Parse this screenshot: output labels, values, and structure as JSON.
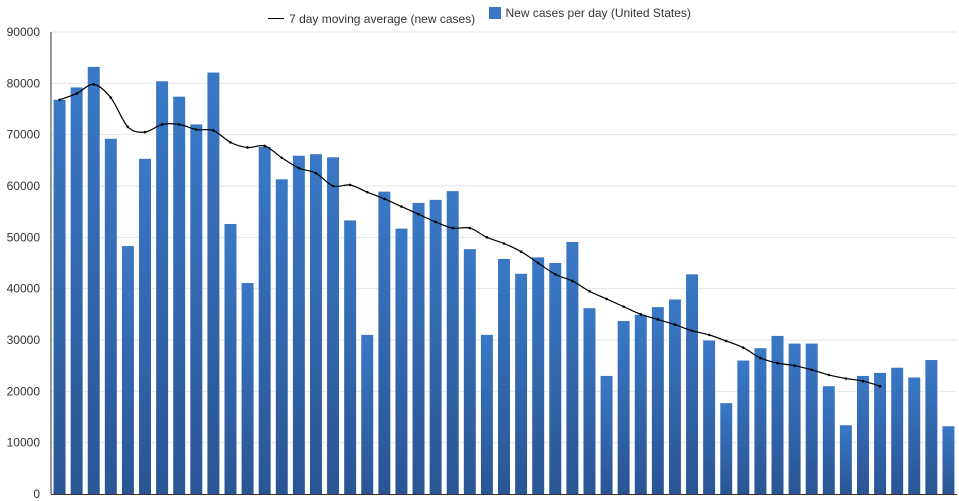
{
  "chart_data": {
    "type": "bar",
    "title": "",
    "xlabel": "",
    "ylabel": "",
    "ylim": [
      0,
      90000
    ],
    "yticks": [
      "0",
      "10000",
      "20000",
      "30000",
      "40000",
      "50000",
      "60000",
      "70000",
      "80000",
      "90000"
    ],
    "grid": true,
    "legend_position": "top-center",
    "colors": {
      "bar_top": "#3a78c6",
      "bar_bottom": "#2a5594",
      "line": "#000000",
      "grid": "#e6e6e6",
      "axis": "#333333"
    },
    "series": [
      {
        "name": "7 day moving average (new cases)",
        "kind": "line",
        "values": [
          76800,
          78000,
          79800,
          77200,
          71500,
          70500,
          72000,
          72000,
          71000,
          70800,
          68500,
          67500,
          67800,
          65500,
          63500,
          62500,
          60000,
          60200,
          58800,
          57500,
          56000,
          54500,
          53000,
          51800,
          51800,
          50000,
          48800,
          47200,
          45000,
          42800,
          41500,
          39500,
          38000,
          36500,
          35000,
          34000,
          33000,
          31800,
          31000,
          29800,
          28500,
          26500,
          25500,
          25000,
          24200,
          23200,
          22500,
          22000,
          21000
        ]
      },
      {
        "name": "New cases per day (United States)",
        "kind": "bar",
        "values": [
          76800,
          79200,
          83200,
          69200,
          48300,
          65300,
          80400,
          77400,
          72000,
          82100,
          52600,
          41100,
          67600,
          61300,
          65900,
          66200,
          65600,
          53300,
          31000,
          58900,
          51700,
          56700,
          57300,
          59000,
          47700,
          31000,
          45800,
          42900,
          46100,
          45000,
          49100,
          36200,
          23000,
          33700,
          34900,
          36400,
          37900,
          42800,
          29900,
          17700,
          26000,
          28400,
          30800,
          29300,
          29300,
          21000,
          13400,
          23000,
          23600,
          24600,
          22700,
          26100,
          13200
        ]
      }
    ]
  }
}
